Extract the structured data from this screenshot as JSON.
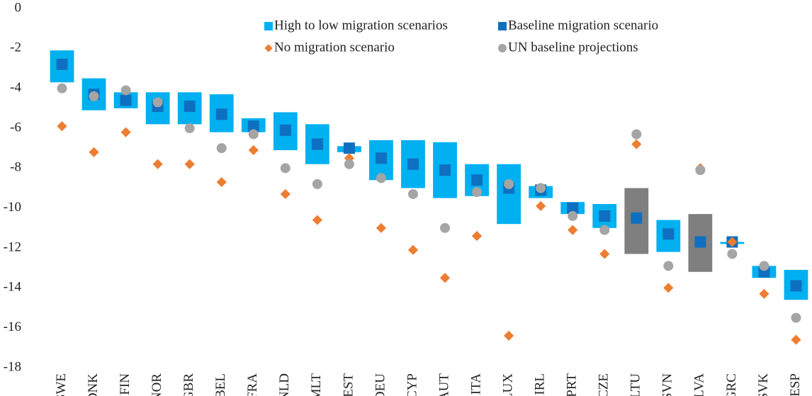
{
  "chart_data": {
    "type": "range_dot",
    "categories": [
      "SWE",
      "DNK",
      "FIN",
      "NOR",
      "GBR",
      "BEL",
      "FRA",
      "NLD",
      "MLT",
      "EST",
      "DEU",
      "CYP",
      "AUT",
      "ITA",
      "LUX",
      "IRL",
      "PRT",
      "CZE",
      "LTU",
      "SVN",
      "LVA",
      "GRC",
      "SVK",
      "ESP"
    ],
    "series": [
      {
        "name": "High to low migration scenarios",
        "color": "#00b0f0",
        "highlight_color": "#7f7f7f",
        "highlight_categories": [
          "LTU",
          "LVA"
        ],
        "high": [
          -2.1,
          -3.5,
          -4.2,
          -4.2,
          -4.2,
          -4.3,
          -5.5,
          -5.2,
          -5.8,
          -6.9,
          -6.6,
          -6.6,
          -6.7,
          -7.8,
          -7.8,
          -8.9,
          -9.7,
          -9.8,
          -9.0,
          -10.6,
          -10.3,
          -11.7,
          -12.9,
          -13.1
        ],
        "low": [
          -3.7,
          -5.1,
          -5.0,
          -5.8,
          -5.8,
          -6.2,
          -6.2,
          -7.1,
          -7.8,
          -7.2,
          -8.6,
          -9.0,
          -9.5,
          -9.4,
          -10.8,
          -9.5,
          -10.3,
          -11.0,
          -12.3,
          -12.2,
          -13.2,
          -11.8,
          -13.5,
          -14.6
        ]
      },
      {
        "name": "Baseline migration scenario",
        "color": "#0f6fc0",
        "values": [
          -2.8,
          -4.3,
          -4.6,
          -4.9,
          -4.9,
          -5.3,
          -5.9,
          -6.1,
          -6.8,
          -7.0,
          -7.5,
          -7.8,
          -8.1,
          -8.6,
          -9.0,
          -9.1,
          -10.0,
          -10.4,
          -10.5,
          -11.3,
          -11.7,
          -11.7,
          -13.2,
          -13.9
        ]
      },
      {
        "name": "No migration scenario",
        "color": "#ed7d31",
        "values": [
          -5.9,
          -7.2,
          -6.2,
          -7.8,
          -7.8,
          -8.7,
          -7.1,
          -9.3,
          -10.6,
          -7.5,
          -11.0,
          -12.1,
          -13.5,
          -11.4,
          -16.4,
          -9.9,
          -11.1,
          -12.3,
          -6.8,
          -14.0,
          -8.0,
          -11.7,
          -14.3,
          -16.6
        ]
      },
      {
        "name": "UN baseline projections",
        "color": "#a5a5a5",
        "values": [
          -4.0,
          -4.4,
          -4.1,
          -4.7,
          -6.0,
          -7.0,
          -6.3,
          -8.0,
          -8.8,
          -7.8,
          -8.5,
          -9.3,
          -11.0,
          -9.2,
          -8.8,
          -9.0,
          -10.4,
          -11.1,
          -6.3,
          -12.9,
          -8.1,
          -12.3,
          -12.9,
          -15.5
        ]
      }
    ],
    "ylim": [
      0,
      -18
    ],
    "yticks": [
      0,
      -2,
      -4,
      -6,
      -8,
      -10,
      -12,
      -14,
      -16,
      -18
    ],
    "grid": false
  }
}
